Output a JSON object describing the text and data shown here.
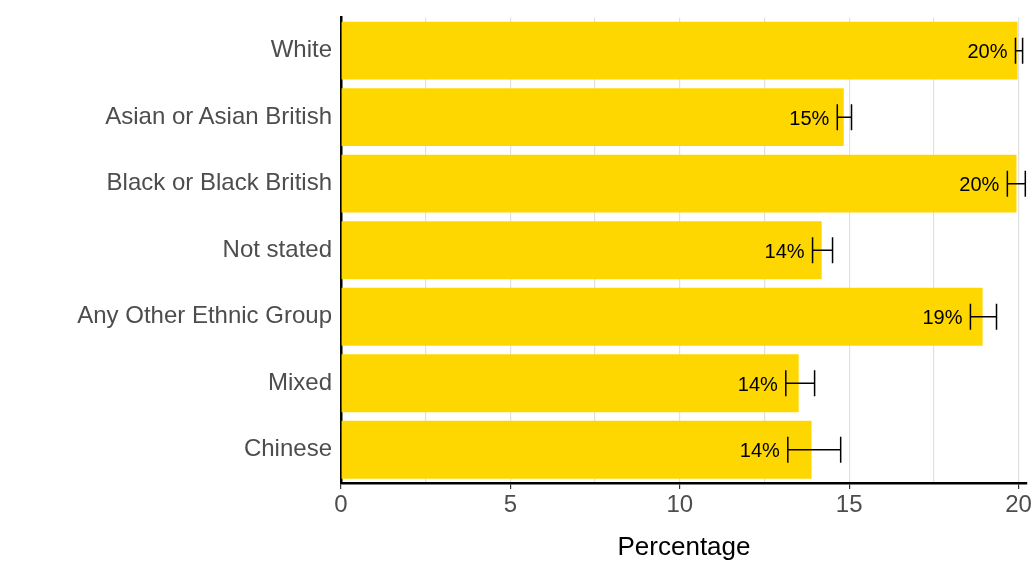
{
  "chart_data": {
    "type": "bar",
    "orientation": "horizontal",
    "xlabel": "Percentage",
    "categories": [
      "White",
      "Asian or Asian British",
      "Black or Black British",
      "Not stated",
      "Any Other Ethnic Group",
      "Mixed",
      "Chinese"
    ],
    "values": [
      19.97,
      14.84,
      19.94,
      14.19,
      18.94,
      13.51,
      13.89
    ],
    "errors": [
      [
        19.91,
        20.12
      ],
      [
        14.65,
        15.07
      ],
      [
        19.67,
        20.2
      ],
      [
        13.92,
        14.51
      ],
      [
        18.58,
        19.35
      ],
      [
        13.13,
        13.98
      ],
      [
        13.19,
        14.75
      ]
    ],
    "value_labels": [
      "20%",
      "15%",
      "20%",
      "14%",
      "19%",
      "14%",
      "14%"
    ],
    "color": "#ffd700",
    "xlim": [
      0,
      20.25
    ],
    "xticks": [
      0,
      {
        "value": 2.5,
        "label": null
      },
      5,
      {
        "value": 7.5,
        "label": null
      },
      10,
      {
        "value": 12.5,
        "label": null
      },
      15,
      {
        "value": 17.5,
        "label": null
      },
      20
    ],
    "grid": "x",
    "legend": false
  }
}
